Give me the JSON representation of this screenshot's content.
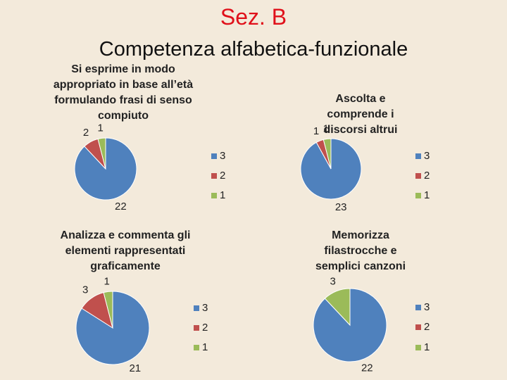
{
  "header": {
    "title": "Sez. B",
    "subtitle": "Competenza alfabetica-funzionale"
  },
  "chart_data": [
    {
      "type": "pie",
      "title": "Si esprime in modo appropriato in base all’età formulando frasi di senso compiuto",
      "categories": [
        "3",
        "2",
        "1"
      ],
      "values": [
        22,
        2,
        1
      ],
      "colors": [
        "#4f81bd",
        "#c0504d",
        "#9bbb59"
      ]
    },
    {
      "type": "pie",
      "title": "Ascolta e comprende i discorsi altrui",
      "categories": [
        "3",
        "2",
        "1"
      ],
      "values": [
        23,
        1,
        1
      ],
      "colors": [
        "#4f81bd",
        "#c0504d",
        "#9bbb59"
      ]
    },
    {
      "type": "pie",
      "title": "Analizza e commenta gli elementi rappresentati graficamente",
      "categories": [
        "3",
        "2",
        "1"
      ],
      "values": [
        21,
        3,
        1
      ],
      "colors": [
        "#4f81bd",
        "#c0504d",
        "#9bbb59"
      ]
    },
    {
      "type": "pie",
      "title": "Memorizza filastrocche e semplici canzoni",
      "categories": [
        "3",
        "2",
        "1"
      ],
      "values": [
        22,
        0,
        3
      ],
      "colors": [
        "#4f81bd",
        "#c0504d",
        "#9bbb59"
      ]
    }
  ]
}
